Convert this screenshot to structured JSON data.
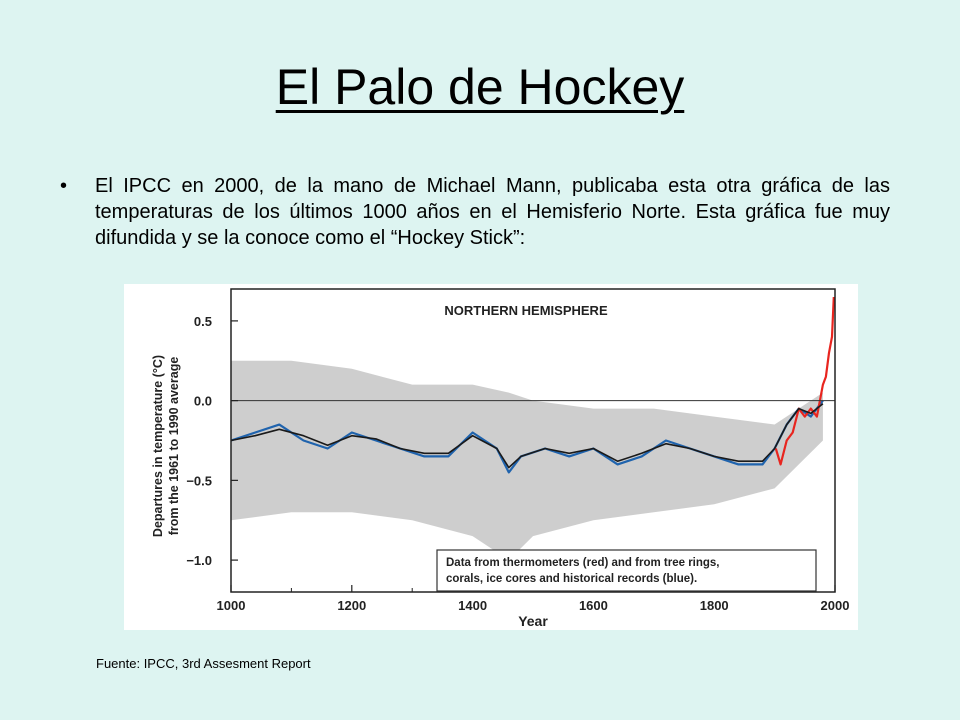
{
  "slide": {
    "title": "El Palo de Hockey",
    "bullet": "El IPCC en 2000, de la mano de Michael Mann, publicaba esta otra gráfica de las temperaturas de los últimos 1000 años en el Hemisferio Norte. Esta gráfica fue muy difundida y se la conoce como el “Hockey Stick”:",
    "source": "Fuente: IPCC, 3rd Assesment Report"
  },
  "chart_data": {
    "type": "line",
    "title": "NORTHERN HEMISPHERE",
    "xlabel": "Year",
    "ylabel_line1": "Departures in temperature (°C)",
    "ylabel_line2": "from the 1961 to 1990 average",
    "xlim": [
      1000,
      2000
    ],
    "ylim": [
      -1.2,
      0.7
    ],
    "xticks": [
      1000,
      1200,
      1400,
      1600,
      1800,
      2000
    ],
    "yticks": [
      0.5,
      0.0,
      -0.5,
      -1.0
    ],
    "ytick_labels": [
      "0.5",
      "0.0",
      "−0.5",
      "−1.0"
    ],
    "legend_text_line1": "Data from thermometers (red) and from tree rings,",
    "legend_text_line2": "corals, ice cores and historical records (blue).",
    "legend_position": "bottom-right",
    "colors": {
      "thermometer": "#e8251f",
      "proxy": "#1f63ad",
      "smoothed": "#1a1a1a",
      "uncertainty": "#bdbdbd"
    },
    "series": [
      {
        "name": "thermometers (red)",
        "x": [
          1902,
          1910,
          1920,
          1930,
          1940,
          1950,
          1960,
          1970,
          1980,
          1985,
          1990,
          1995,
          1998
        ],
        "values": [
          -0.3,
          -0.4,
          -0.25,
          -0.2,
          -0.05,
          -0.1,
          -0.05,
          -0.1,
          0.1,
          0.15,
          0.3,
          0.4,
          0.65
        ]
      },
      {
        "name": "tree rings, corals, ice cores and historical records (blue)",
        "x": [
          1000,
          1040,
          1080,
          1120,
          1160,
          1200,
          1240,
          1280,
          1320,
          1360,
          1400,
          1440,
          1460,
          1480,
          1520,
          1560,
          1600,
          1640,
          1680,
          1720,
          1760,
          1800,
          1840,
          1880,
          1900,
          1920,
          1940,
          1960,
          1980
        ],
        "values": [
          -0.25,
          -0.2,
          -0.15,
          -0.25,
          -0.3,
          -0.2,
          -0.25,
          -0.3,
          -0.35,
          -0.35,
          -0.2,
          -0.3,
          -0.45,
          -0.35,
          -0.3,
          -0.35,
          -0.3,
          -0.4,
          -0.35,
          -0.25,
          -0.3,
          -0.35,
          -0.4,
          -0.4,
          -0.3,
          -0.15,
          -0.05,
          -0.1,
          0.0
        ]
      },
      {
        "name": "smoothed",
        "x": [
          1000,
          1040,
          1080,
          1120,
          1160,
          1200,
          1240,
          1280,
          1320,
          1360,
          1400,
          1440,
          1460,
          1480,
          1520,
          1560,
          1600,
          1640,
          1680,
          1720,
          1760,
          1800,
          1840,
          1880,
          1900,
          1920,
          1940,
          1960,
          1980
        ],
        "values": [
          -0.25,
          -0.22,
          -0.18,
          -0.22,
          -0.28,
          -0.22,
          -0.24,
          -0.3,
          -0.33,
          -0.33,
          -0.22,
          -0.3,
          -0.42,
          -0.35,
          -0.3,
          -0.33,
          -0.3,
          -0.38,
          -0.33,
          -0.27,
          -0.3,
          -0.35,
          -0.38,
          -0.38,
          -0.3,
          -0.15,
          -0.05,
          -0.08,
          -0.02
        ]
      },
      {
        "name": "uncertainty upper",
        "x": [
          1000,
          1100,
          1200,
          1300,
          1400,
          1460,
          1500,
          1600,
          1700,
          1800,
          1900,
          1980
        ],
        "values": [
          0.25,
          0.25,
          0.2,
          0.1,
          0.1,
          0.05,
          0.0,
          -0.05,
          -0.05,
          -0.1,
          -0.15,
          0.05
        ]
      },
      {
        "name": "uncertainty lower",
        "x": [
          1000,
          1100,
          1200,
          1300,
          1400,
          1460,
          1500,
          1600,
          1700,
          1800,
          1900,
          1980
        ],
        "values": [
          -0.75,
          -0.7,
          -0.7,
          -0.75,
          -0.85,
          -1.0,
          -0.85,
          -0.75,
          -0.7,
          -0.65,
          -0.55,
          -0.25
        ]
      }
    ]
  }
}
